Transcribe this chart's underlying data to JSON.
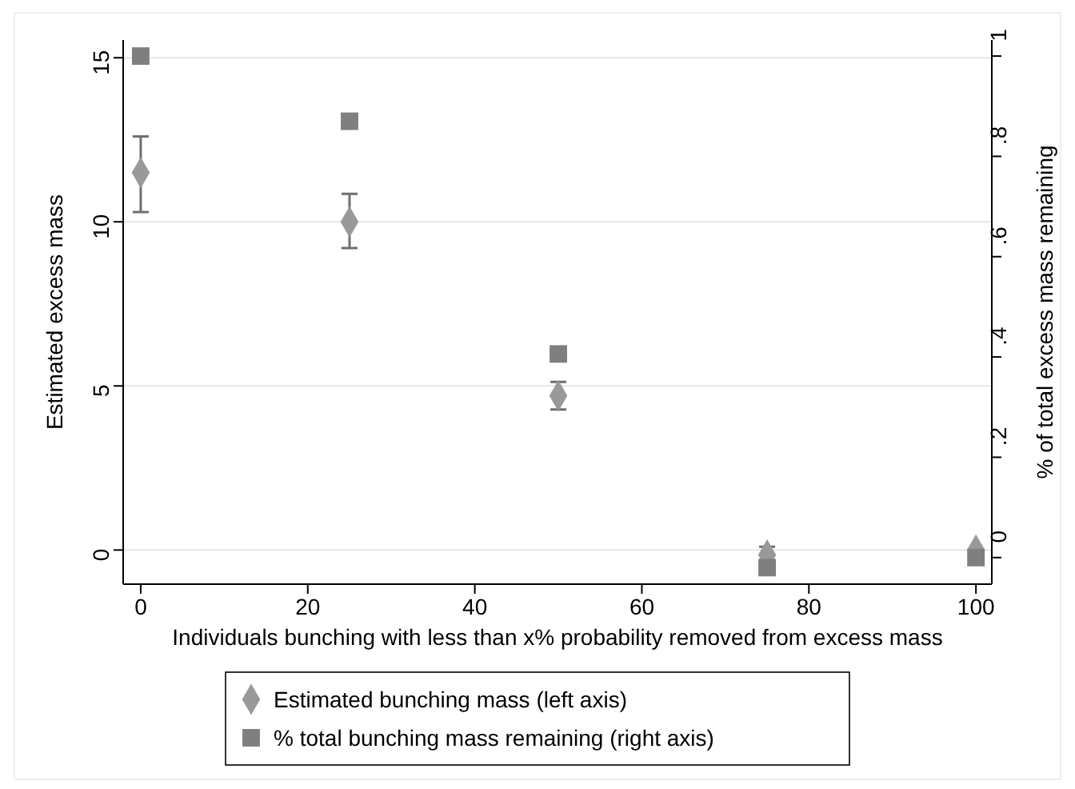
{
  "chart_data": {
    "type": "scatter",
    "xlabel": "Individuals bunching with less than x% probability removed from excess mass",
    "ylabel": "Estimated excess mass",
    "y2label": "% of total excess mass remaining",
    "x": [
      0,
      25,
      50,
      75,
      100
    ],
    "xlim": [
      -2.1,
      101.9
    ],
    "xticks": [
      0,
      20,
      40,
      60,
      80,
      100
    ],
    "ylim": [
      -1.04,
      15.54
    ],
    "yticks": [
      0,
      5,
      10,
      15
    ],
    "y2lim": [
      -0.053,
      1.032
    ],
    "y2ticks": [
      {
        "value": 0,
        "label": "0"
      },
      {
        "value": 0.2,
        "label": ".2"
      },
      {
        "value": 0.4,
        "label": ".4"
      },
      {
        "value": 0.6,
        "label": ".6"
      },
      {
        "value": 0.8,
        "label": ".8"
      },
      {
        "value": 1,
        "label": "1"
      }
    ],
    "grid": "y",
    "legend": "bottom",
    "series": [
      {
        "name": "Estimated bunching mass (left axis)",
        "color": "#999999",
        "marker": "diamond",
        "values": [
          11.5,
          10.0,
          4.7,
          -0.15,
          0.0
        ],
        "errors": [
          [
            10.3,
            12.6
          ],
          [
            9.2,
            10.85
          ],
          [
            4.28,
            5.12
          ],
          [
            -0.4,
            0.1
          ],
          null
        ]
      },
      {
        "name": "% total bunching mass remaining (right axis)",
        "color": "#7f7f7f",
        "marker": "square",
        "axis": "y2",
        "values": [
          1.0,
          0.87,
          0.406,
          -0.02,
          0.0
        ]
      }
    ]
  }
}
